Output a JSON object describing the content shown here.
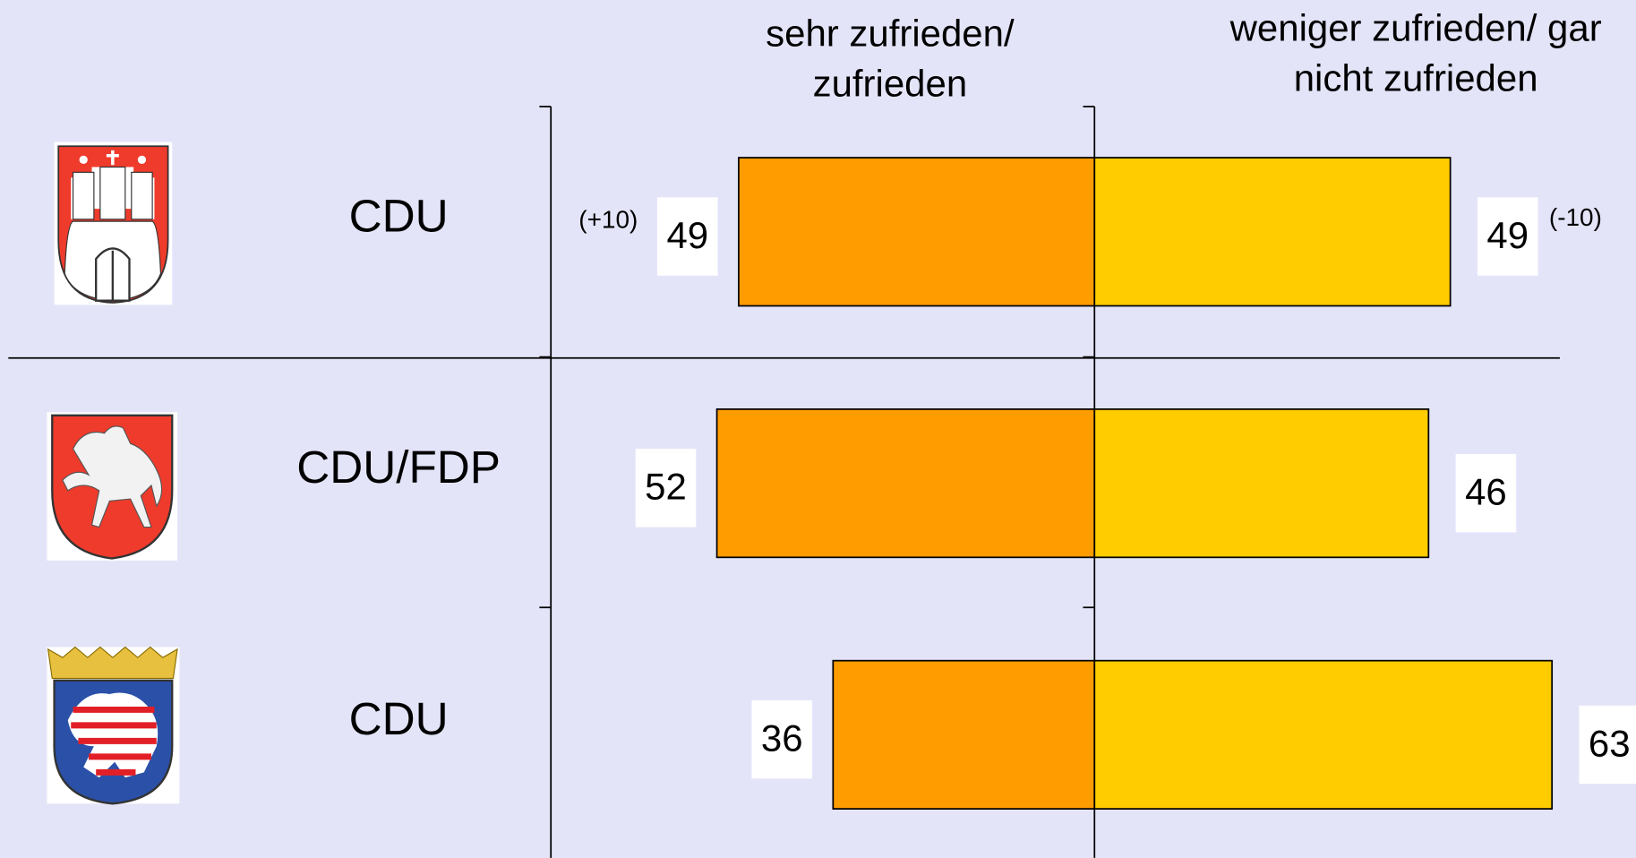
{
  "chart_data": {
    "type": "diverging-bar",
    "categories": [
      "CDU",
      "CDU/FDP",
      "CDU"
    ],
    "series": [
      {
        "name": "sehr zufrieden/ zufrieden",
        "color": "#ff9c00",
        "values": [
          49,
          52,
          36
        ]
      },
      {
        "name": "weniger zufrieden/ gar nicht zufrieden",
        "color": "#ffcc00",
        "values": [
          49,
          46,
          63
        ]
      }
    ],
    "annotations": [
      "(+10)",
      "(-10)"
    ]
  }
}
